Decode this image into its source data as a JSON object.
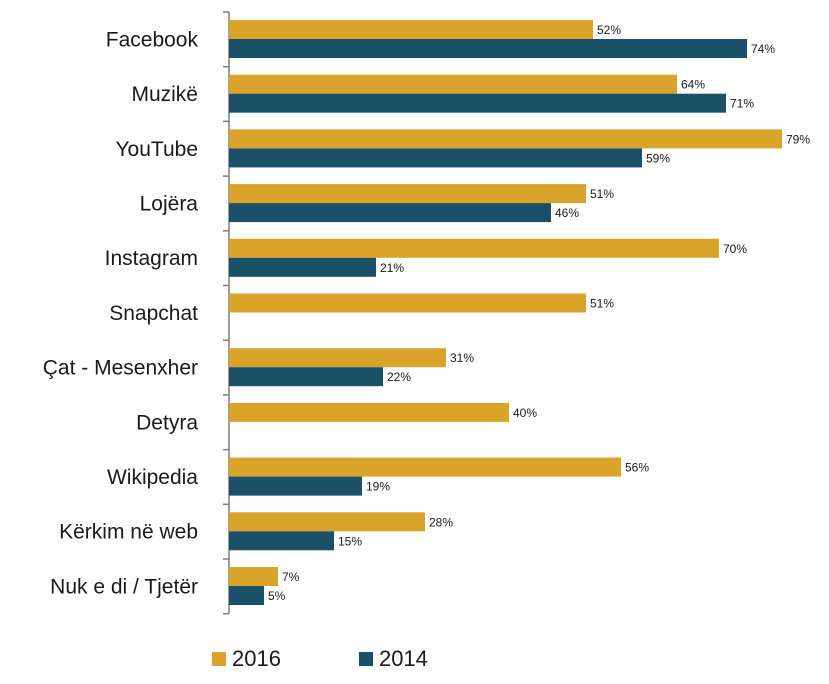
{
  "chart_data": {
    "type": "bar",
    "orientation": "horizontal",
    "categories": [
      "Facebook",
      "Muzikë",
      "YouTube",
      "Lojëra",
      "Instagram",
      "Snapchat",
      "Çat - Mesenxher",
      "Detyra",
      "Wikipedia",
      "Kërkim në web",
      "Nuk e di / Tjetër"
    ],
    "series": [
      {
        "name": "2016",
        "color": "#D9A429",
        "values": [
          52,
          64,
          79,
          51,
          70,
          51,
          31,
          40,
          56,
          28,
          7
        ]
      },
      {
        "name": "2014",
        "color": "#1A5068",
        "values": [
          74,
          71,
          59,
          46,
          21,
          null,
          22,
          null,
          19,
          15,
          5
        ]
      }
    ],
    "value_suffix": "%",
    "xlim": [
      0,
      80
    ],
    "grid": false,
    "legend_position": "bottom"
  }
}
